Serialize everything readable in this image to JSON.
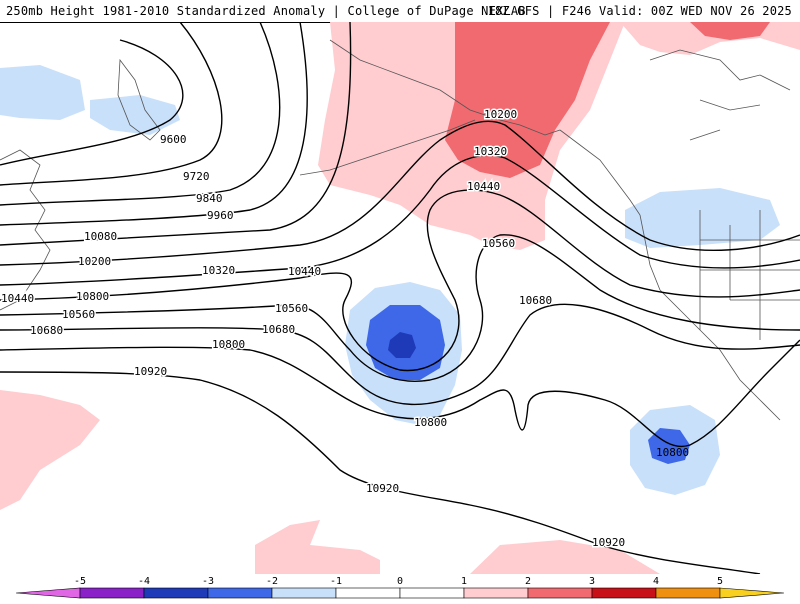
{
  "header": {
    "title_left": "250mb Height 1981-2010 Standardized Anomaly | College of DuPage NEXLAB",
    "title_right": "18Z GFS | F246 Valid: 00Z WED NOV 26 2025"
  },
  "contour_labels": [
    "9600",
    "9720",
    "9840",
    "9960",
    "10080",
    "10200",
    "10320",
    "10440",
    "10560",
    "10680",
    "10800",
    "10920",
    "10200",
    "10320",
    "10440",
    "10560",
    "10680",
    "10800",
    "10800",
    "10920",
    "10920",
    "10440",
    "10560",
    "10680",
    "10800"
  ],
  "colorbar": {
    "ticks": [
      "-5",
      "-4",
      "-3",
      "-2",
      "-1",
      "0",
      "1",
      "2",
      "3",
      "4",
      "5"
    ],
    "colors": {
      "anom_neg5": "#e066e6",
      "anom_neg4": "#8a20c8",
      "anom_neg3": "#1e3ab8",
      "anom_neg2": "#3e68e8",
      "anom_neg1": "#c8e0fa",
      "anom_0": "#ffffff",
      "anom_pos1": "#ffccd0",
      "anom_pos2": "#f06a70",
      "anom_pos3": "#c81018",
      "anom_pos4": "#f09010",
      "anom_pos5": "#f8d020"
    }
  }
}
